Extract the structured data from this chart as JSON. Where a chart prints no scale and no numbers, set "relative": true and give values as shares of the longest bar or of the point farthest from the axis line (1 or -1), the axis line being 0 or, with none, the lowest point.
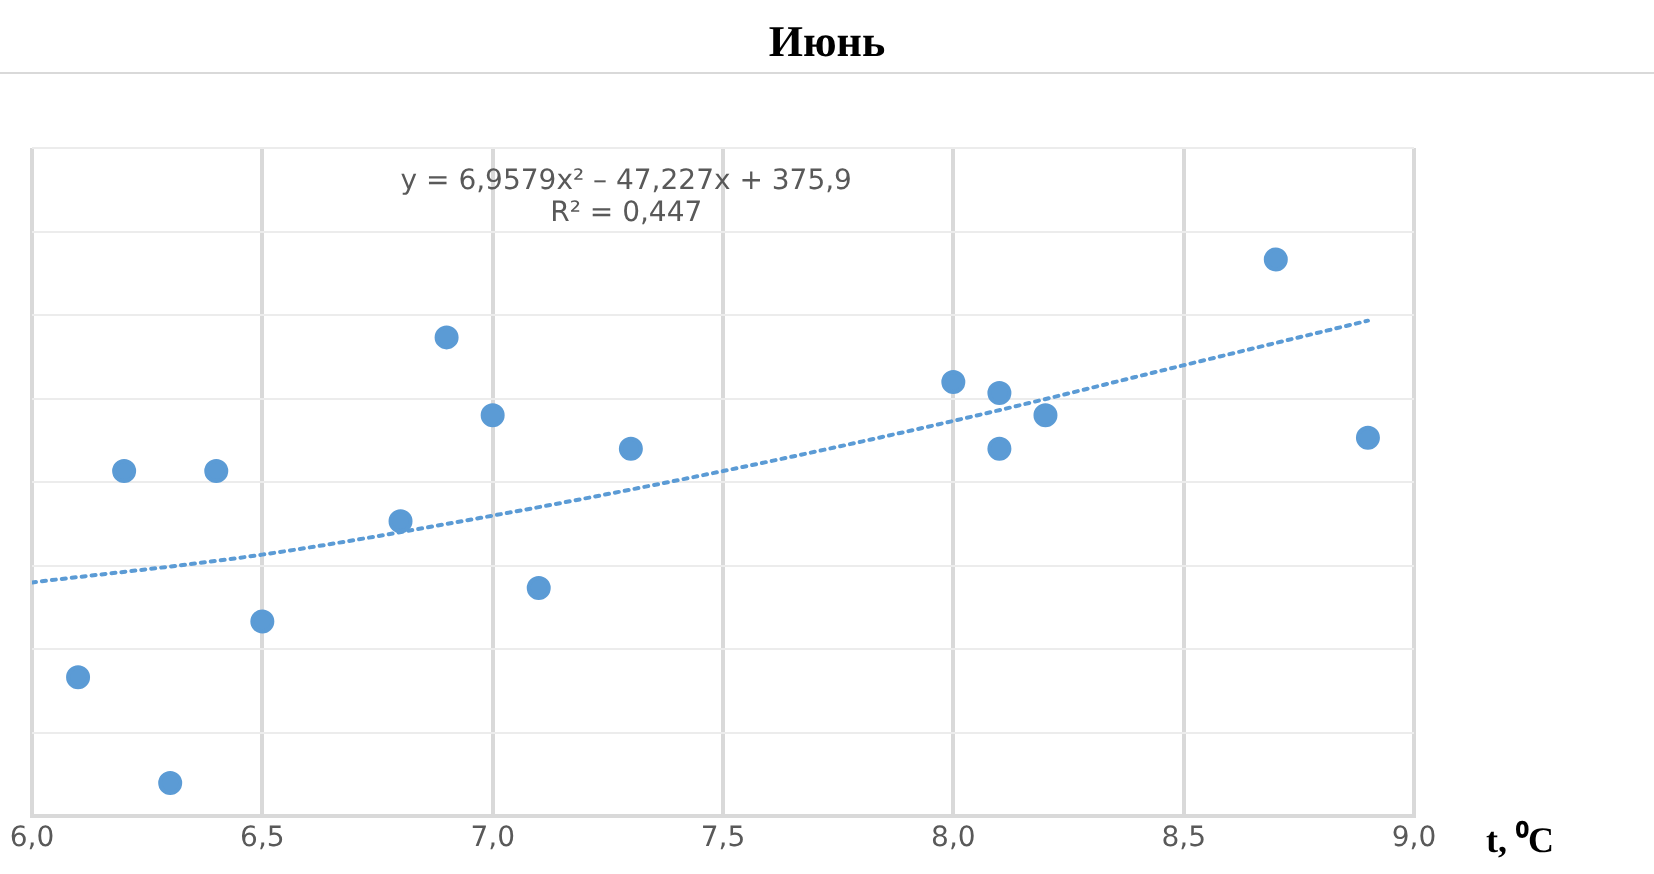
{
  "chart_data": {
    "type": "scatter",
    "title": "Июнь",
    "xlabel": "t, ⁰C",
    "relative": true,
    "annotations": [
      "y = 6,9579x² – 47,227x + 375,9",
      "R² = 0,447"
    ],
    "xlim": [
      6.0,
      9.0
    ],
    "xticks": [
      {
        "value": 6.0,
        "label": "6,0"
      },
      {
        "value": 6.5,
        "label": "6,5"
      },
      {
        "value": 7.0,
        "label": "7,0"
      },
      {
        "value": 7.5,
        "label": "7,5"
      },
      {
        "value": 8.0,
        "label": "8,0"
      },
      {
        "value": 8.5,
        "label": "8,5"
      },
      {
        "value": 9.0,
        "label": "9,0"
      }
    ],
    "grid": true,
    "legend": false,
    "series": [
      {
        "color": "#5b9bd5",
        "marker": "circle",
        "x": [
          6.1,
          6.2,
          6.3,
          6.4,
          6.5,
          6.8,
          6.9,
          7.0,
          7.1,
          7.3,
          8.0,
          8.1,
          8.1,
          8.2,
          8.7,
          8.9
        ],
        "values": [
          0.25,
          0.62,
          0.06,
          0.62,
          0.35,
          0.53,
          0.86,
          0.72,
          0.41,
          0.66,
          0.78,
          0.76,
          0.66,
          0.72,
          1,
          0.68
        ]
      },
      {
        "type": "line",
        "color": "#5b9bd5",
        "marker": "none",
        "line_style": "dotted",
        "x": [
          6.0,
          6.5,
          7.0,
          7.5,
          8.0,
          8.5,
          8.9
        ],
        "values": [
          0.42,
          0.47,
          0.54,
          0.62,
          0.71,
          0.81,
          0.89
        ]
      }
    ]
  }
}
